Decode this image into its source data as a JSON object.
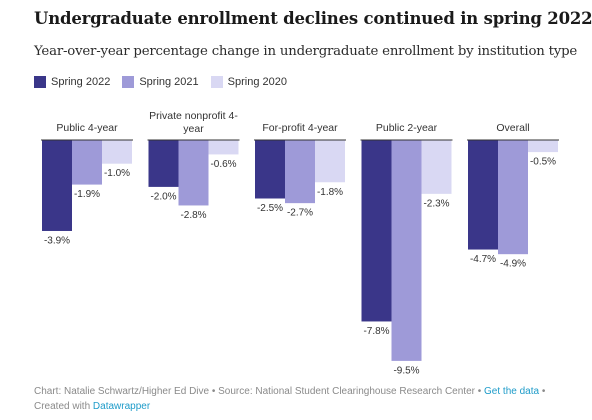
{
  "colors": {
    "spring2022": "#3a3689",
    "spring2021": "#9e9ad8",
    "spring2020": "#d9d8f3",
    "link": "#1d9bc9"
  },
  "header": {
    "title": "Undergraduate enrollment declines continued in spring 2022",
    "subtitle": "Year-over-year percentage change in undergraduate enrollment by institution type"
  },
  "legend": [
    {
      "label": "Spring 2022"
    },
    {
      "label": "Spring 2021"
    },
    {
      "label": "Spring 2020"
    }
  ],
  "footer": {
    "chart_credit": "Chart: Natalie Schwartz/Higher Ed Dive",
    "sep1": " • ",
    "source": "Source: National Student Clearinghouse Research Center",
    "sep2": " • ",
    "get_data": "Get the data",
    "sep3": " •",
    "created_with": "Created with ",
    "datawrapper": "Datawrapper"
  },
  "chart_data": {
    "type": "bar",
    "categories": [
      "Public 4-year",
      "Private nonprofit 4-year",
      "For-profit 4-year",
      "Public 2-year",
      "Overall"
    ],
    "category_label_lines": [
      [
        "Public 4-year"
      ],
      [
        "Private nonprofit 4-",
        "year"
      ],
      [
        "For-profit 4-year"
      ],
      [
        "Public 2-year"
      ],
      [
        "Overall"
      ]
    ],
    "series": [
      {
        "name": "Spring 2022",
        "values": [
          -3.9,
          -2.0,
          -2.5,
          -7.8,
          -4.7
        ],
        "labels": [
          "-3.9%",
          "-2.0%",
          "-2.5%",
          "-7.8%",
          "-4.7%"
        ]
      },
      {
        "name": "Spring 2021",
        "values": [
          -1.9,
          -2.8,
          -2.7,
          -9.5,
          -4.9
        ],
        "labels": [
          "-1.9%",
          "-2.8%",
          "-2.7%",
          "-9.5%",
          "-4.9%"
        ]
      },
      {
        "name": "Spring 2020",
        "values": [
          -1.0,
          -0.6,
          -1.8,
          -2.3,
          -0.5
        ],
        "labels": [
          "-1.0%",
          "-0.6%",
          "-1.8%",
          "-2.3%",
          "-0.5%"
        ]
      }
    ],
    "ylim": [
      -9.5,
      0
    ],
    "legend_position": "top-left"
  }
}
